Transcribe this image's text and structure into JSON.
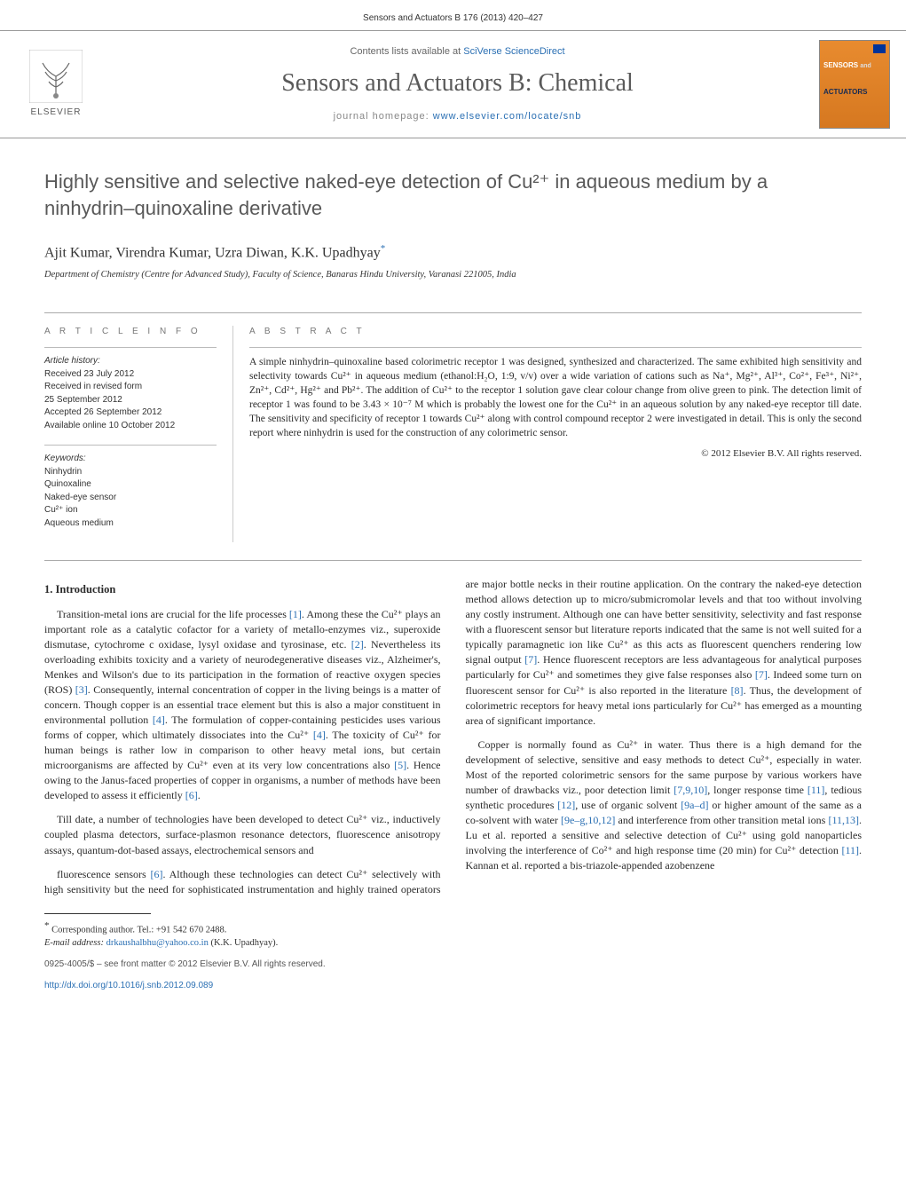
{
  "header": {
    "citation": "Sensors and Actuators B 176 (2013) 420–427"
  },
  "masthead": {
    "contents_prefix": "Contents lists available at ",
    "contents_link": "SciVerse ScienceDirect",
    "journal": "Sensors and Actuators B: Chemical",
    "homepage_prefix": "journal homepage: ",
    "homepage_url": "www.elsevier.com/locate/snb",
    "publisher": "ELSEVIER",
    "cover_top": "SENSORS",
    "cover_bottom": "ACTUATORS"
  },
  "article": {
    "title": "Highly sensitive and selective naked-eye detection of Cu²⁺ in aqueous medium by a ninhydrin–quinoxaline derivative",
    "authors": "Ajit Kumar, Virendra Kumar, Uzra Diwan, K.K. Upadhyay",
    "corresponding_mark": "*",
    "affiliation": "Department of Chemistry (Centre for Advanced Study), Faculty of Science, Banaras Hindu University, Varanasi 221005, India"
  },
  "info": {
    "heading": "A R T I C L E   I N F O",
    "history_title": "Article history:",
    "history": [
      "Received 23 July 2012",
      "Received in revised form",
      "25 September 2012",
      "Accepted 26 September 2012",
      "Available online 10 October 2012"
    ],
    "keywords_title": "Keywords:",
    "keywords": [
      "Ninhydrin",
      "Quinoxaline",
      "Naked-eye sensor",
      "Cu²⁺ ion",
      "Aqueous medium"
    ]
  },
  "abstract": {
    "heading": "A B S T R A C T",
    "text": "A simple ninhydrin–quinoxaline based colorimetric receptor 1 was designed, synthesized and characterized. The same exhibited high sensitivity and selectivity towards Cu²⁺ in aqueous medium (ethanol:H₂O, 1:9, v/v) over a wide variation of cations such as Na⁺, Mg²⁺, Al³⁺, Co²⁺, Fe³⁺, Ni²⁺, Zn²⁺, Cd²⁺, Hg²⁺ and Pb²⁺. The addition of Cu²⁺ to the receptor 1 solution gave clear colour change from olive green to pink. The detection limit of receptor 1 was found to be 3.43 × 10⁻⁷ M which is probably the lowest one for the Cu²⁺ in an aqueous solution by any naked-eye receptor till date. The sensitivity and specificity of receptor 1 towards Cu²⁺ along with control compound receptor 2 were investigated in detail. This is only the second report where ninhydrin is used for the construction of any colorimetric sensor.",
    "copyright": "© 2012 Elsevier B.V. All rights reserved."
  },
  "sections": {
    "intro_heading": "1. Introduction",
    "p1": "Transition-metal ions are crucial for the life processes [1]. Among these the Cu²⁺ plays an important role as a catalytic cofactor for a variety of metallo-enzymes viz., superoxide dismutase, cytochrome c oxidase, lysyl oxidase and tyrosinase, etc. [2]. Nevertheless its overloading exhibits toxicity and a variety of neurodegenerative diseases viz., Alzheimer's, Menkes and Wilson's due to its participation in the formation of reactive oxygen species (ROS) [3]. Consequently, internal concentration of copper in the living beings is a matter of concern. Though copper is an essential trace element but this is also a major constituent in environmental pollution [4]. The formulation of copper-containing pesticides uses various forms of copper, which ultimately dissociates into the Cu²⁺ [4]. The toxicity of Cu²⁺ for human beings is rather low in comparison to other heavy metal ions, but certain microorganisms are affected by Cu²⁺ even at its very low concentrations also [5]. Hence owing to the Janus-faced properties of copper in organisms, a number of methods have been developed to assess it efficiently [6].",
    "p2": "Till date, a number of technologies have been developed to detect Cu²⁺ viz., inductively coupled plasma detectors, surface-plasmon resonance detectors, fluorescence anisotropy assays, quantum-dot-based assays, electrochemical sensors and",
    "p3": "fluorescence sensors [6]. Although these technologies can detect Cu²⁺ selectively with high sensitivity but the need for sophisticated instrumentation and highly trained operators are major bottle necks in their routine application. On the contrary the naked-eye detection method allows detection up to micro/submicromolar levels and that too without involving any costly instrument. Although one can have better sensitivity, selectivity and fast response with a fluorescent sensor but literature reports indicated that the same is not well suited for a typically paramagnetic ion like Cu²⁺ as this acts as fluorescent quenchers rendering low signal output [7]. Hence fluorescent receptors are less advantageous for analytical purposes particularly for Cu²⁺ and sometimes they give false responses also [7]. Indeed some turn on fluorescent sensor for Cu²⁺ is also reported in the literature [8]. Thus, the development of colorimetric receptors for heavy metal ions particularly for Cu²⁺ has emerged as a mounting area of significant importance.",
    "p4": "Copper is normally found as Cu²⁺ in water. Thus there is a high demand for the development of selective, sensitive and easy methods to detect Cu²⁺, especially in water. Most of the reported colorimetric sensors for the same purpose by various workers have number of drawbacks viz., poor detection limit [7,9,10], longer response time [11], tedious synthetic procedures [12], use of organic solvent [9a–d] or higher amount of the same as a co-solvent with water [9e–g,10,12] and interference from other transition metal ions [11,13]. Lu et al. reported a sensitive and selective detection of Cu²⁺ using gold nanoparticles involving the interference of Co²⁺ and high response time (20 min) for Cu²⁺ detection [11]. Kannan et al. reported a bis-triazole-appended azobenzene"
  },
  "footnote": {
    "corresponding": "Corresponding author. Tel.: +91 542 670 2488.",
    "email_label": "E-mail address:",
    "email": "drkaushalbhu@yahoo.co.in",
    "email_suffix": "(K.K. Upadhyay).",
    "issn_line": "0925-4005/$ – see front matter © 2012 Elsevier B.V. All rights reserved.",
    "doi": "http://dx.doi.org/10.1016/j.snb.2012.09.089"
  },
  "colors": {
    "link": "#2a6fb3",
    "orange": "#e88b2f",
    "text": "#2a2a2a",
    "grey": "#585858"
  }
}
